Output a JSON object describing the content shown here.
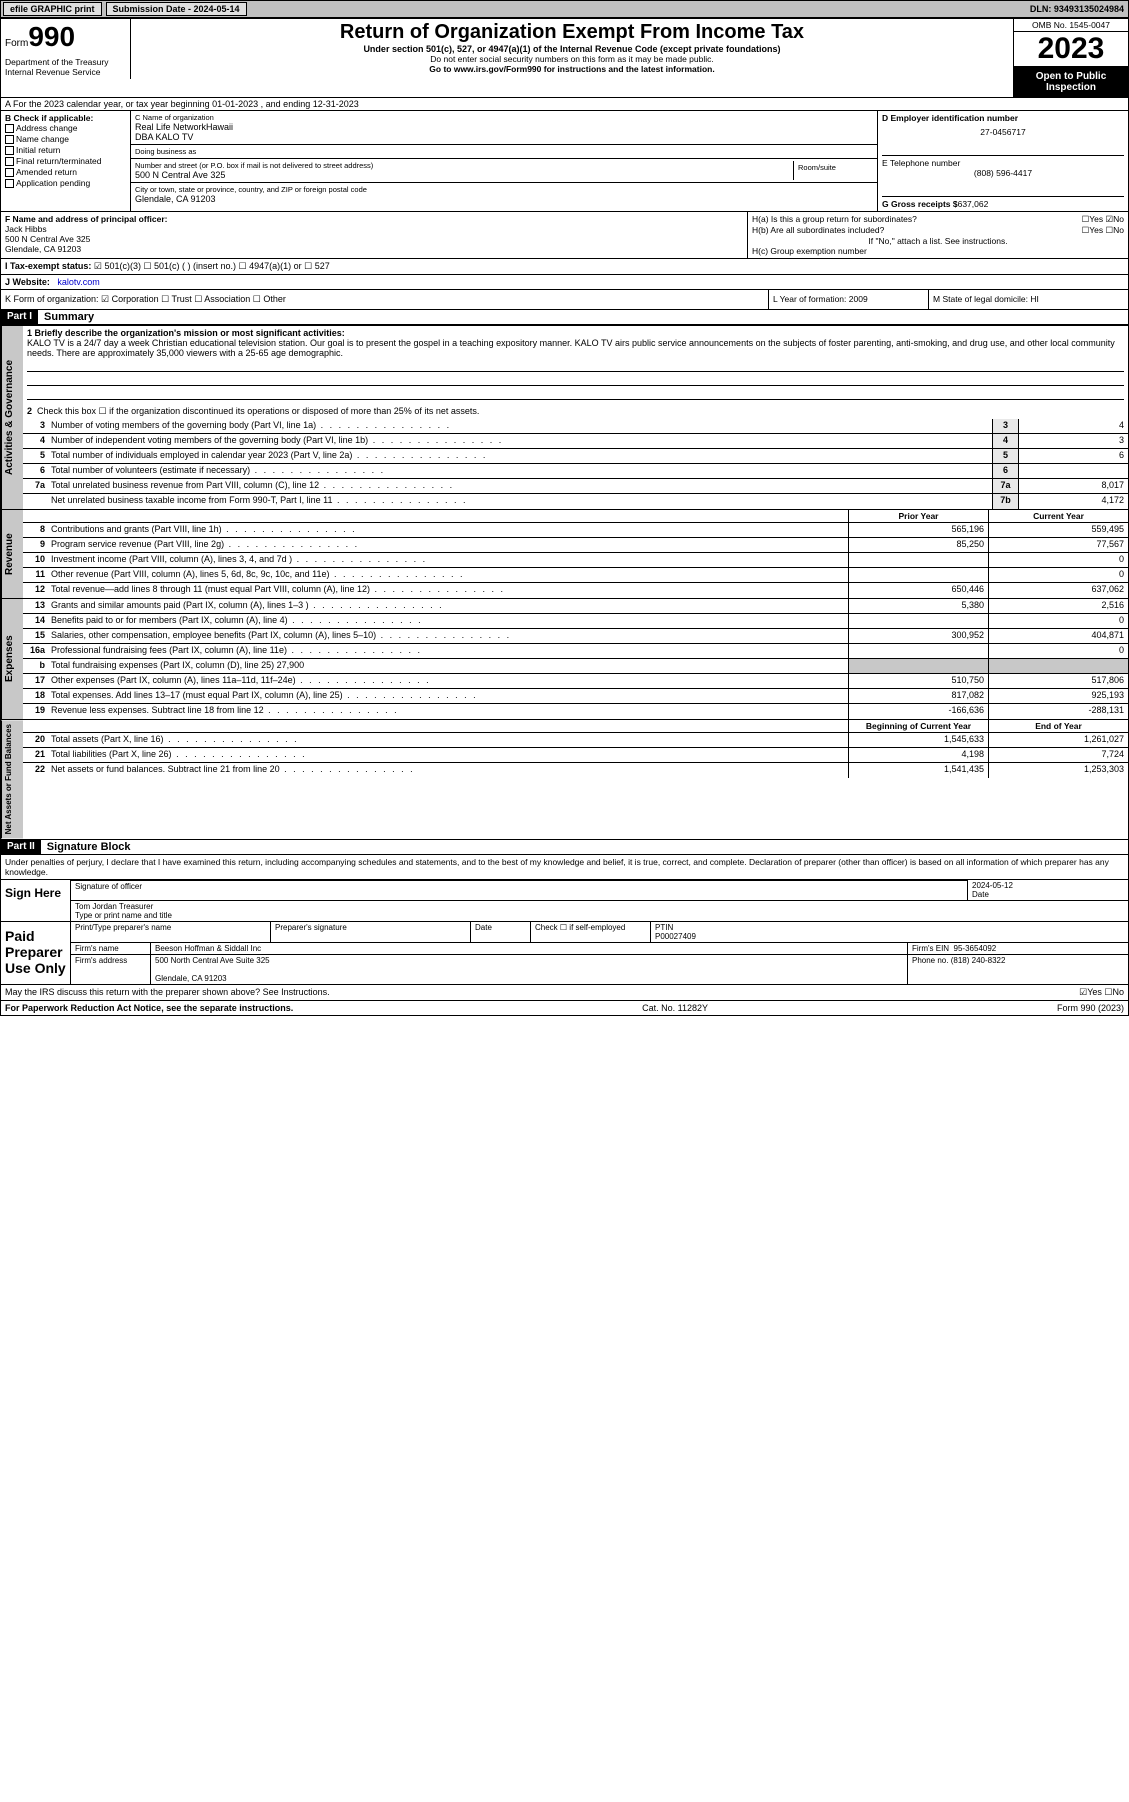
{
  "topbar": {
    "efile": "efile GRAPHIC print",
    "submission": "Submission Date - 2024-05-14",
    "dln": "DLN: 93493135024984"
  },
  "header": {
    "form_label": "Form",
    "form_num": "990",
    "title": "Return of Organization Exempt From Income Tax",
    "under": "Under section 501(c), 527, or 4947(a)(1) of the Internal Revenue Code (except private foundations)",
    "ssn_note": "Do not enter social security numbers on this form as it may be made public.",
    "goto": "Go to www.irs.gov/Form990 for instructions and the latest information.",
    "omb": "OMB No. 1545-0047",
    "year": "2023",
    "open": "Open to Public Inspection",
    "dept": "Department of the Treasury Internal Revenue Service"
  },
  "row_a": "A For the 2023 calendar year, or tax year beginning 01-01-2023   , and ending 12-31-2023",
  "col_b": {
    "title": "B Check if applicable:",
    "items": [
      "Address change",
      "Name change",
      "Initial return",
      "Final return/terminated",
      "Amended return",
      "Application pending"
    ]
  },
  "col_c": {
    "name_lab": "C Name of organization",
    "name": "Real Life NetworkHawaii",
    "dba": "DBA KALO TV",
    "dba_lab": "Doing business as",
    "addr_lab": "Number and street (or P.O. box if mail is not delivered to street address)",
    "room_lab": "Room/suite",
    "addr": "500 N Central Ave 325",
    "city_lab": "City or town, state or province, country, and ZIP or foreign postal code",
    "city": "Glendale, CA  91203"
  },
  "col_d": {
    "ein_lab": "D Employer identification number",
    "ein": "27-0456717",
    "tel_lab": "E Telephone number",
    "tel": "(808) 596-4417",
    "gross_lab": "G Gross receipts $",
    "gross": "637,062"
  },
  "col_f": {
    "lab": "F  Name and address of principal officer:",
    "name": "Jack Hibbs",
    "addr1": "500 N Central Ave 325",
    "addr2": "Glendale, CA  91203"
  },
  "col_h": {
    "ha": "H(a)  Is this a group return for subordinates?",
    "ha_ans": "☐Yes ☑No",
    "hb": "H(b)  Are all subordinates included?",
    "hb_ans": "☐Yes ☐No",
    "hb_note": "If \"No,\" attach a list. See instructions.",
    "hc": "H(c)  Group exemption number"
  },
  "row_i": {
    "lab": "I  Tax-exempt status:",
    "opts": "☑ 501(c)(3)   ☐ 501(c) ( ) (insert no.)   ☐ 4947(a)(1) or   ☐ 527"
  },
  "row_j": {
    "lab": "J  Website:",
    "val": "kalotv.com"
  },
  "row_k": {
    "lab": "K Form of organization:  ☑ Corporation ☐ Trust ☐ Association ☐ Other",
    "l": "L Year of formation: 2009",
    "m": "M State of legal domicile: HI"
  },
  "part1": {
    "hdr": "Part I",
    "title": "Summary"
  },
  "summary": {
    "q1_lab": "1  Briefly describe the organization's mission or most significant activities:",
    "q1": "KALO TV is a 24/7 day a week Christian educational television station. Our goal is to present the gospel in a teaching expository manner. KALO TV airs public service announcements on the subjects of foster parenting, anti-smoking, and drug use, and other local community needs. There are approximately 35,000 viewers with a 25-65 age demographic.",
    "q2": "Check this box ☐ if the organization discontinued its operations or disposed of more than 25% of its net assets.",
    "lines_gov": [
      {
        "n": "3",
        "d": "Number of voting members of the governing body (Part VI, line 1a)",
        "box": "3",
        "v": "4"
      },
      {
        "n": "4",
        "d": "Number of independent voting members of the governing body (Part VI, line 1b)",
        "box": "4",
        "v": "3"
      },
      {
        "n": "5",
        "d": "Total number of individuals employed in calendar year 2023 (Part V, line 2a)",
        "box": "5",
        "v": "6"
      },
      {
        "n": "6",
        "d": "Total number of volunteers (estimate if necessary)",
        "box": "6",
        "v": ""
      },
      {
        "n": "7a",
        "d": "Total unrelated business revenue from Part VIII, column (C), line 12",
        "box": "7a",
        "v": "8,017"
      },
      {
        "n": "",
        "d": "Net unrelated business taxable income from Form 990-T, Part I, line 11",
        "box": "7b",
        "v": "4,172"
      }
    ],
    "hdr_prior": "Prior Year",
    "hdr_curr": "Current Year",
    "lines_rev": [
      {
        "n": "8",
        "d": "Contributions and grants (Part VIII, line 1h)",
        "p": "565,196",
        "c": "559,495"
      },
      {
        "n": "9",
        "d": "Program service revenue (Part VIII, line 2g)",
        "p": "85,250",
        "c": "77,567"
      },
      {
        "n": "10",
        "d": "Investment income (Part VIII, column (A), lines 3, 4, and 7d )",
        "p": "",
        "c": "0"
      },
      {
        "n": "11",
        "d": "Other revenue (Part VIII, column (A), lines 5, 6d, 8c, 9c, 10c, and 11e)",
        "p": "",
        "c": "0"
      },
      {
        "n": "12",
        "d": "Total revenue—add lines 8 through 11 (must equal Part VIII, column (A), line 12)",
        "p": "650,446",
        "c": "637,062"
      }
    ],
    "lines_exp": [
      {
        "n": "13",
        "d": "Grants and similar amounts paid (Part IX, column (A), lines 1–3 )",
        "p": "5,380",
        "c": "2,516"
      },
      {
        "n": "14",
        "d": "Benefits paid to or for members (Part IX, column (A), line 4)",
        "p": "",
        "c": "0"
      },
      {
        "n": "15",
        "d": "Salaries, other compensation, employee benefits (Part IX, column (A), lines 5–10)",
        "p": "300,952",
        "c": "404,871"
      },
      {
        "n": "16a",
        "d": "Professional fundraising fees (Part IX, column (A), line 11e)",
        "p": "",
        "c": "0"
      },
      {
        "n": "b",
        "d": "Total fundraising expenses (Part IX, column (D), line 25) 27,900",
        "p": "—",
        "c": "—"
      },
      {
        "n": "17",
        "d": "Other expenses (Part IX, column (A), lines 11a–11d, 11f–24e)",
        "p": "510,750",
        "c": "517,806"
      },
      {
        "n": "18",
        "d": "Total expenses. Add lines 13–17 (must equal Part IX, column (A), line 25)",
        "p": "817,082",
        "c": "925,193"
      },
      {
        "n": "19",
        "d": "Revenue less expenses. Subtract line 18 from line 12",
        "p": "-166,636",
        "c": "-288,131"
      }
    ],
    "hdr_beg": "Beginning of Current Year",
    "hdr_end": "End of Year",
    "lines_net": [
      {
        "n": "20",
        "d": "Total assets (Part X, line 16)",
        "p": "1,545,633",
        "c": "1,261,027"
      },
      {
        "n": "21",
        "d": "Total liabilities (Part X, line 26)",
        "p": "4,198",
        "c": "7,724"
      },
      {
        "n": "22",
        "d": "Net assets or fund balances. Subtract line 21 from line 20",
        "p": "1,541,435",
        "c": "1,253,303"
      }
    ],
    "vtabs": {
      "gov": "Activities & Governance",
      "rev": "Revenue",
      "exp": "Expenses",
      "net": "Net Assets or Fund Balances"
    }
  },
  "part2": {
    "hdr": "Part II",
    "title": "Signature Block"
  },
  "sig": {
    "perjury": "Under penalties of perjury, I declare that I have examined this return, including accompanying schedules and statements, and to the best of my knowledge and belief, it is true, correct, and complete. Declaration of preparer (other than officer) is based on all information of which preparer has any knowledge.",
    "sign_here": "Sign Here",
    "sig_officer_lab": "Signature of officer",
    "sig_date": "2024-05-12",
    "date_lab": "Date",
    "officer_name": "Tom Jordan  Treasurer",
    "officer_name_lab": "Type or print name and title",
    "paid": "Paid Preparer Use Only",
    "prep_name_lab": "Print/Type preparer's name",
    "prep_sig_lab": "Preparer's signature",
    "prep_date_lab": "Date",
    "self_emp": "Check ☐ if self-employed",
    "ptin_lab": "PTIN",
    "ptin": "P00027409",
    "firm_name_lab": "Firm's name",
    "firm_name": "Beeson Hoffman & Siddall Inc",
    "firm_ein_lab": "Firm's EIN",
    "firm_ein": "95-3654092",
    "firm_addr_lab": "Firm's address",
    "firm_addr": "500 North Central Ave Suite 325",
    "firm_city": "Glendale, CA  91203",
    "phone_lab": "Phone no.",
    "phone": "(818) 240-8322",
    "discuss": "May the IRS discuss this return with the preparer shown above? See Instructions.",
    "discuss_ans": "☑Yes ☐No"
  },
  "footer": {
    "left": "For Paperwork Reduction Act Notice, see the separate instructions.",
    "mid": "Cat. No. 11282Y",
    "right": "Form 990 (2023)"
  }
}
